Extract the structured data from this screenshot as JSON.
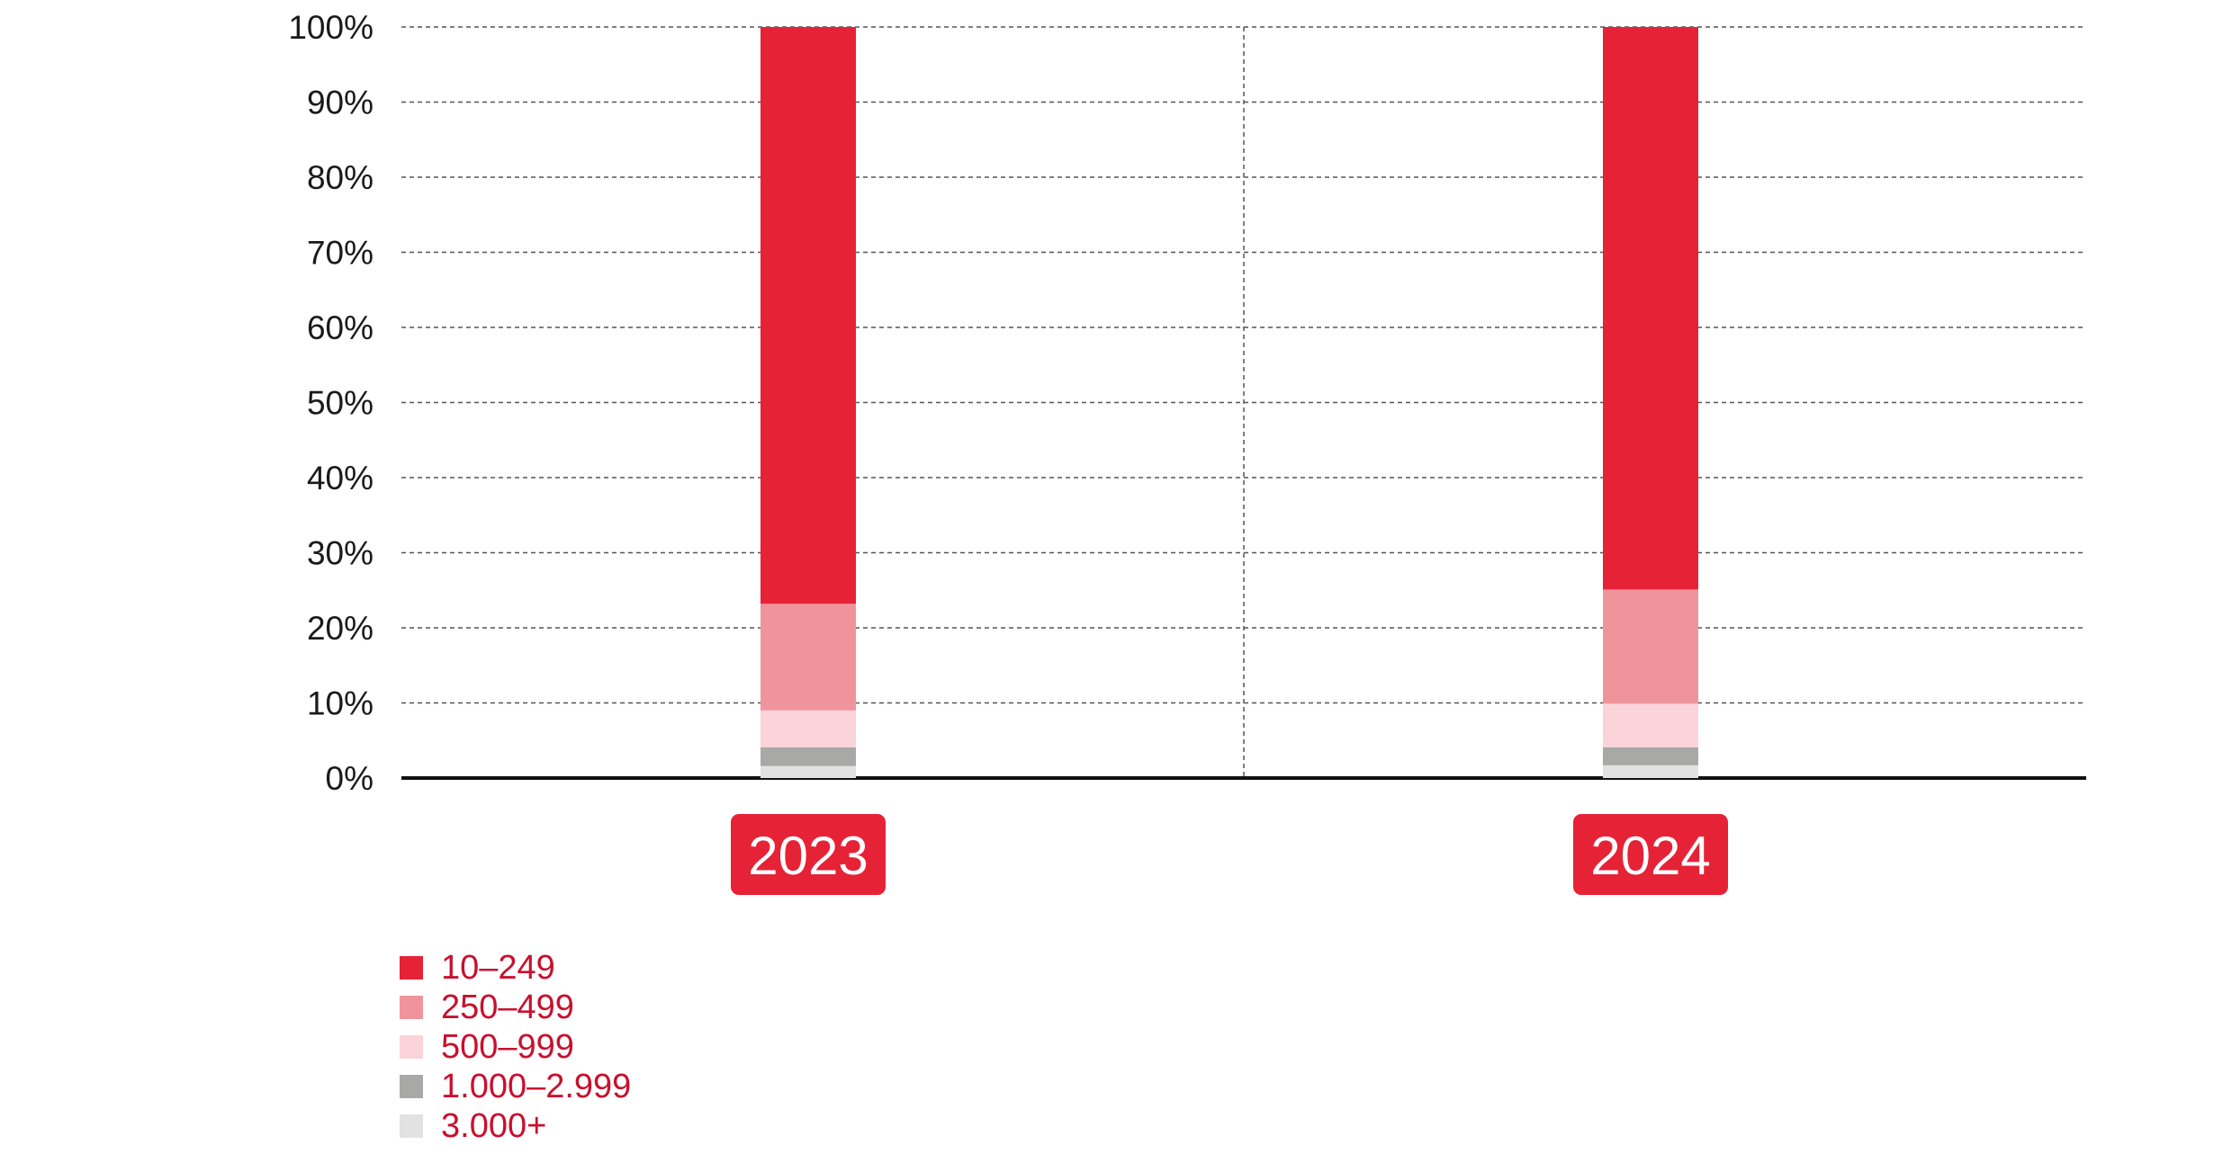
{
  "chart_data": {
    "type": "bar",
    "stacked": true,
    "categories": [
      "2023",
      "2024"
    ],
    "series": [
      {
        "name": "3.000+",
        "color": "#e2e2e2",
        "values": [
          1.6,
          1.7
        ]
      },
      {
        "name": "1.000–2.999",
        "color": "#a8a8a6",
        "values": [
          2.5,
          2.4
        ]
      },
      {
        "name": "500–999",
        "color": "#fbd3da",
        "values": [
          4.9,
          5.8
        ]
      },
      {
        "name": "250–499",
        "color": "#f0949c",
        "values": [
          14.2,
          15.2
        ]
      },
      {
        "name": "10–249",
        "color": "#e62237",
        "values": [
          76.8,
          74.9
        ]
      }
    ],
    "ylim": [
      0,
      100
    ],
    "yticks": [
      "0%",
      "10%",
      "20%",
      "30%",
      "40%",
      "50%",
      "60%",
      "70%",
      "80%",
      "90%",
      "100%"
    ],
    "grid": true,
    "legend_position": "bottom-left",
    "category_label_color": "#e62237"
  }
}
